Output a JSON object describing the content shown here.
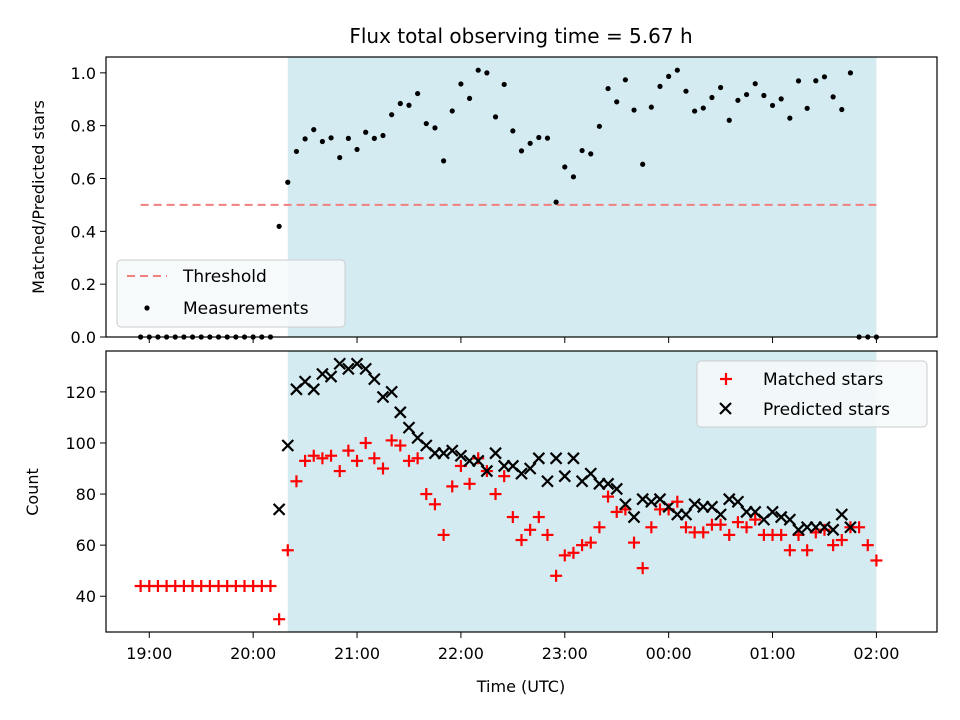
{
  "chart_data": {
    "type": "scatter",
    "title": "Flux total observing time = 5.67 h",
    "xlabel": "Time (UTC)",
    "x_ticks": [
      "19:00",
      "20:00",
      "21:00",
      "22:00",
      "23:00",
      "00:00",
      "01:00",
      "02:00"
    ],
    "x_range": [
      "18:35",
      "02:35"
    ],
    "shaded_interval": [
      "20:20",
      "02:00"
    ],
    "shade_color": "#d4ebf2",
    "top": {
      "ylabel": "Matched/Predicted stars",
      "ylim": [
        0,
        1.06
      ],
      "y_ticks": [
        "0.0",
        "0.2",
        "0.4",
        "0.6",
        "0.8",
        "1.0"
      ],
      "threshold": {
        "name": "Threshold",
        "value": 0.5,
        "x_range": [
          "18:55",
          "02:00"
        ],
        "color": "#f08080"
      },
      "measurements_name": "Measurements",
      "legend_position": "lower-left"
    },
    "bottom": {
      "ylabel": "Count",
      "ylim": [
        26,
        136
      ],
      "y_ticks": [
        "40",
        "60",
        "80",
        "100",
        "120"
      ],
      "legend_position": "upper-right",
      "series": [
        {
          "name": "Matched stars",
          "marker": "plus",
          "color": "#ff0000"
        },
        {
          "name": "Predicted stars",
          "marker": "x",
          "color": "#000000"
        }
      ]
    },
    "x": [
      "18:55",
      "19:00",
      "19:05",
      "19:10",
      "19:15",
      "19:20",
      "19:25",
      "19:30",
      "19:35",
      "19:40",
      "19:45",
      "19:50",
      "19:55",
      "20:00",
      "20:05",
      "20:10",
      "20:15",
      "20:20",
      "20:25",
      "20:30",
      "20:35",
      "20:40",
      "20:45",
      "20:50",
      "20:55",
      "21:00",
      "21:05",
      "21:10",
      "21:15",
      "21:20",
      "21:25",
      "21:30",
      "21:35",
      "21:40",
      "21:45",
      "21:50",
      "21:55",
      "22:00",
      "22:05",
      "22:10",
      "22:15",
      "22:20",
      "22:25",
      "22:30",
      "22:35",
      "22:40",
      "22:45",
      "22:50",
      "22:55",
      "23:00",
      "23:05",
      "23:10",
      "23:15",
      "23:20",
      "23:25",
      "23:30",
      "23:35",
      "23:40",
      "23:45",
      "23:50",
      "23:55",
      "00:00",
      "00:05",
      "00:10",
      "00:15",
      "00:20",
      "00:25",
      "00:30",
      "00:35",
      "00:40",
      "00:45",
      "00:50",
      "00:55",
      "01:00",
      "01:05",
      "01:10",
      "01:15",
      "01:20",
      "01:25",
      "01:30",
      "01:35",
      "01:40",
      "01:45",
      "01:50",
      "01:55",
      "02:00"
    ],
    "matched": [
      44,
      44,
      44,
      44,
      44,
      44,
      44,
      44,
      44,
      44,
      44,
      44,
      44,
      44,
      44,
      44,
      31,
      58,
      85,
      93,
      95,
      94,
      95,
      89,
      97,
      93,
      100,
      94,
      90,
      101,
      99,
      93,
      94,
      80,
      76,
      64,
      83,
      91,
      84,
      94,
      89,
      80,
      87,
      71,
      62,
      66,
      71,
      64,
      48,
      56,
      57,
      60,
      61,
      67,
      79,
      73,
      74,
      61,
      51,
      67,
      74,
      74,
      77,
      67,
      65,
      65,
      68,
      68,
      64,
      69,
      67,
      70,
      64,
      64,
      64,
      58,
      64,
      58,
      65,
      66,
      60,
      62,
      67,
      67,
      60,
      54
    ],
    "predicted": [
      null,
      null,
      null,
      null,
      null,
      null,
      null,
      null,
      null,
      null,
      null,
      null,
      null,
      null,
      null,
      null,
      74,
      99,
      121,
      124,
      121,
      127,
      126,
      131,
      129,
      131,
      129,
      125,
      118,
      120,
      112,
      106,
      102,
      99,
      96,
      96,
      97,
      95,
      93,
      93,
      89,
      96,
      91,
      91,
      88,
      90,
      94,
      85,
      94,
      87,
      94,
      85,
      88,
      84,
      84,
      82,
      76,
      71,
      78,
      77,
      78,
      75,
      72,
      72,
      76,
      75,
      75,
      72,
      78,
      77,
      73,
      73,
      70,
      73,
      71,
      70,
      66,
      67,
      67,
      67,
      66,
      72,
      67,
      null,
      null,
      null
    ]
  }
}
